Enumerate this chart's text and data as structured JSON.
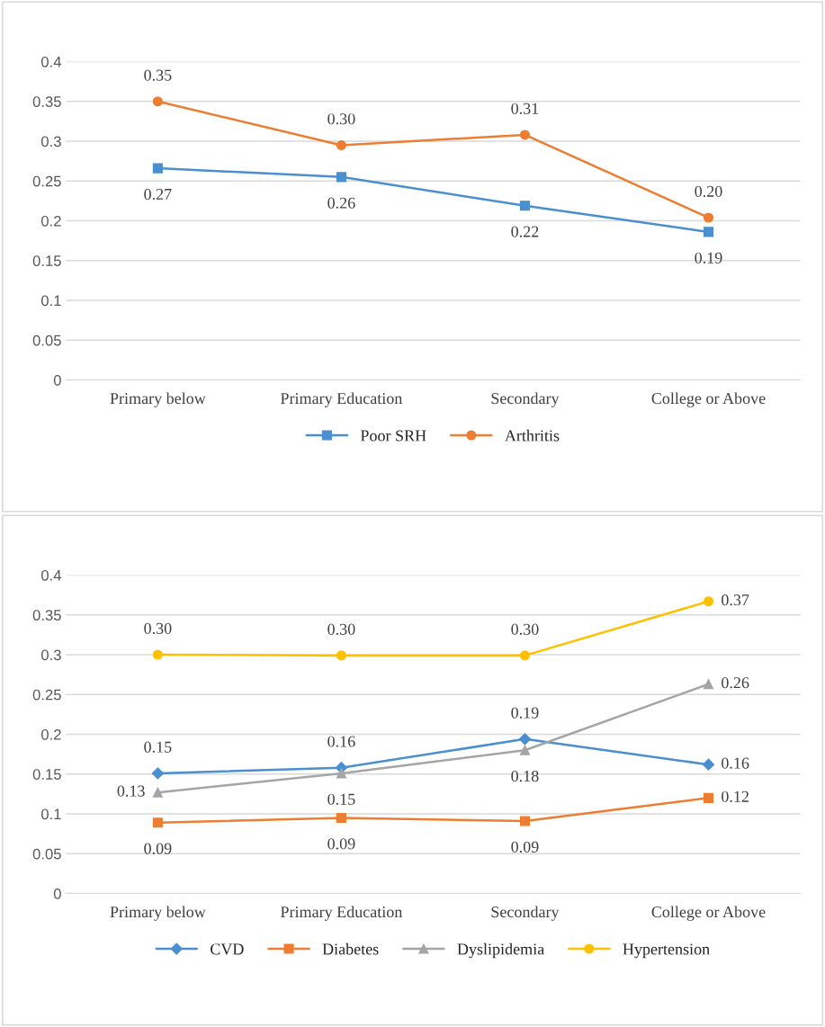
{
  "chart_data": [
    {
      "type": "line",
      "categories": [
        "Primary below",
        "Primary Education",
        "Secondary",
        "College or Above"
      ],
      "ylim": [
        0,
        0.4
      ],
      "yticks": [
        {
          "value": 0,
          "label": "0"
        },
        {
          "value": 0.05,
          "label": "0.05"
        },
        {
          "value": 0.1,
          "label": "0.1"
        },
        {
          "value": 0.15,
          "label": "0.15"
        },
        {
          "value": 0.2,
          "label": "0.2"
        },
        {
          "value": 0.25,
          "label": "0.25"
        },
        {
          "value": 0.3,
          "label": "0.3"
        },
        {
          "value": 0.35,
          "label": "0.35"
        },
        {
          "value": 0.4,
          "label": "0.4"
        }
      ],
      "grid": "y",
      "legend": "bottom",
      "series": [
        {
          "name": "Poor SRH",
          "color": "#4a8fd0",
          "marker": "square",
          "values": [
            0.266,
            0.255,
            0.219,
            0.186
          ],
          "value_labels": [
            "0.27",
            "0.26",
            "0.22",
            "0.19"
          ]
        },
        {
          "name": "Arthritis",
          "color": "#ed7d31",
          "marker": "circle",
          "values": [
            0.35,
            0.295,
            0.308,
            0.204
          ],
          "value_labels": [
            "0.35",
            "0.30",
            "0.31",
            "0.20"
          ]
        }
      ]
    },
    {
      "type": "line",
      "categories": [
        "Primary below",
        "Primary Education",
        "Secondary",
        "College or Above"
      ],
      "ylim": [
        0,
        0.4
      ],
      "yticks": [
        {
          "value": 0,
          "label": "0"
        },
        {
          "value": 0.05,
          "label": "0.05"
        },
        {
          "value": 0.1,
          "label": "0.1"
        },
        {
          "value": 0.15,
          "label": "0.15"
        },
        {
          "value": 0.2,
          "label": "0.2"
        },
        {
          "value": 0.25,
          "label": "0.25"
        },
        {
          "value": 0.3,
          "label": "0.3"
        },
        {
          "value": 0.35,
          "label": "0.35"
        },
        {
          "value": 0.4,
          "label": "0.4"
        }
      ],
      "grid": "y",
      "legend": "bottom",
      "series": [
        {
          "name": "CVD",
          "color": "#4a8fd0",
          "marker": "diamond",
          "values": [
            0.151,
            0.158,
            0.194,
            0.162
          ],
          "value_labels": [
            "0.15",
            "0.16",
            "0.19",
            "0.16"
          ]
        },
        {
          "name": "Diabetes",
          "color": "#ed7d31",
          "marker": "square",
          "values": [
            0.089,
            0.095,
            0.091,
            0.12
          ],
          "value_labels": [
            "0.09",
            "0.09",
            "0.09",
            "0.12"
          ]
        },
        {
          "name": "Dyslipidemia",
          "color": "#a5a5a5",
          "marker": "triangle",
          "values": [
            0.127,
            0.151,
            0.18,
            0.263
          ],
          "value_labels": [
            "0.13",
            "0.15",
            "0.18",
            "0.26"
          ]
        },
        {
          "name": "Hypertension",
          "color": "#ffc000",
          "marker": "circle",
          "values": [
            0.3,
            0.299,
            0.299,
            0.367
          ],
          "value_labels": [
            "0.30",
            "0.30",
            "0.30",
            "0.37"
          ]
        }
      ]
    }
  ]
}
